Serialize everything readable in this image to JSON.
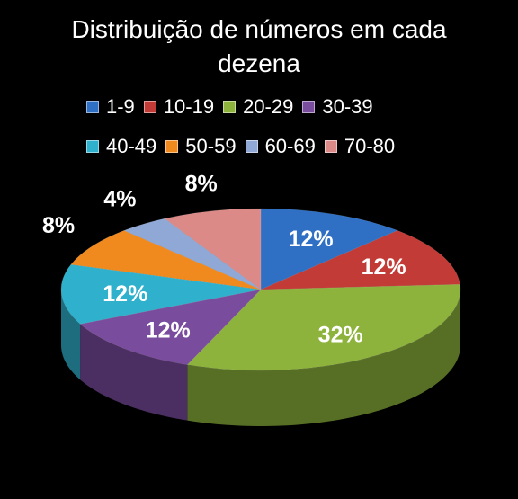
{
  "title_lines": [
    "Distribuição de números em cada",
    "dezena"
  ],
  "chart_data": {
    "type": "pie",
    "title": "Distribuição de números em cada dezena",
    "categories": [
      "1-9",
      "10-19",
      "20-29",
      "30-39",
      "40-49",
      "50-59",
      "60-69",
      "70-80"
    ],
    "values": [
      12,
      12,
      32,
      12,
      12,
      8,
      4,
      8
    ],
    "value_labels": [
      "12%",
      "12%",
      "32%",
      "12%",
      "12%",
      "8%",
      "4%",
      "8%"
    ],
    "colors": [
      "#2f6fc4",
      "#c23b37",
      "#8db33c",
      "#7a4c9e",
      "#2fb0cc",
      "#f08a1e",
      "#8fa8d6",
      "#dc8a88"
    ],
    "legend_position": "top",
    "style": "3d-pie"
  }
}
